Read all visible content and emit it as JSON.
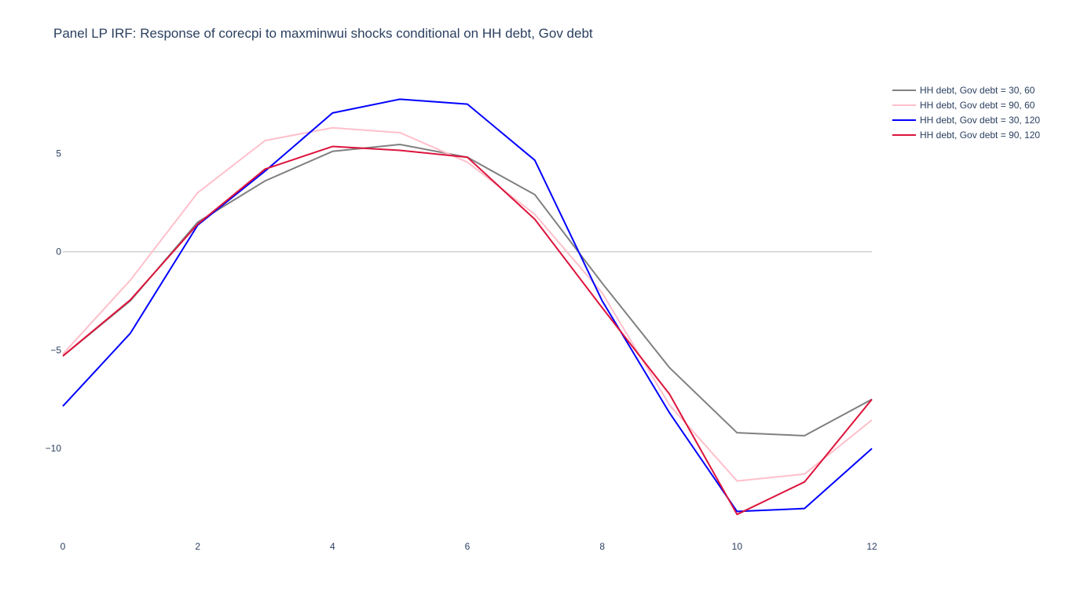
{
  "chart_data": {
    "type": "line",
    "title": "Panel LP IRF: Response of corecpi to maxminwui shocks conditional on HH debt, Gov debt",
    "xlabel": "",
    "ylabel": "",
    "x": [
      0,
      1,
      2,
      3,
      4,
      5,
      6,
      7,
      8,
      9,
      10,
      11,
      12
    ],
    "xlim": [
      0,
      12
    ],
    "ylim": [
      -14.5,
      9.6
    ],
    "x_ticks": [
      0,
      2,
      4,
      6,
      8,
      10,
      12
    ],
    "y_ticks": [
      5,
      0,
      -5,
      -10
    ],
    "x_tick_labels": [
      "0",
      "2",
      "4",
      "6",
      "8",
      "10",
      "12"
    ],
    "y_tick_labels": [
      "5",
      "0",
      "−5",
      "−10"
    ],
    "grid": false,
    "zero_line": true,
    "legend_position": "top-right",
    "series": [
      {
        "name": "HH debt, Gov debt = 30, 60",
        "color": "#808080",
        "values": [
          -5.3,
          -2.5,
          1.5,
          3.6,
          5.1,
          5.45,
          4.8,
          2.9,
          -1.6,
          -5.9,
          -9.2,
          -9.35,
          -7.5
        ]
      },
      {
        "name": "HH debt, Gov debt = 90, 60",
        "color": "#ffc0cb",
        "values": [
          -5.2,
          -1.45,
          3.0,
          5.65,
          6.3,
          6.05,
          4.55,
          1.9,
          -2.1,
          -7.8,
          -11.65,
          -11.3,
          -8.55
        ]
      },
      {
        "name": "HH debt, Gov debt = 30, 120",
        "color": "#0000ff",
        "values": [
          -7.85,
          -4.15,
          1.35,
          4.1,
          7.05,
          7.75,
          7.5,
          4.65,
          -2.5,
          -8.2,
          -13.2,
          -13.05,
          -10.0
        ]
      },
      {
        "name": "HH debt, Gov debt = 90, 120",
        "color": "#dc143c",
        "values": [
          -5.3,
          -2.45,
          1.4,
          4.2,
          5.35,
          5.15,
          4.8,
          1.65,
          -2.85,
          -7.25,
          -13.35,
          -11.7,
          -7.5
        ]
      }
    ]
  }
}
